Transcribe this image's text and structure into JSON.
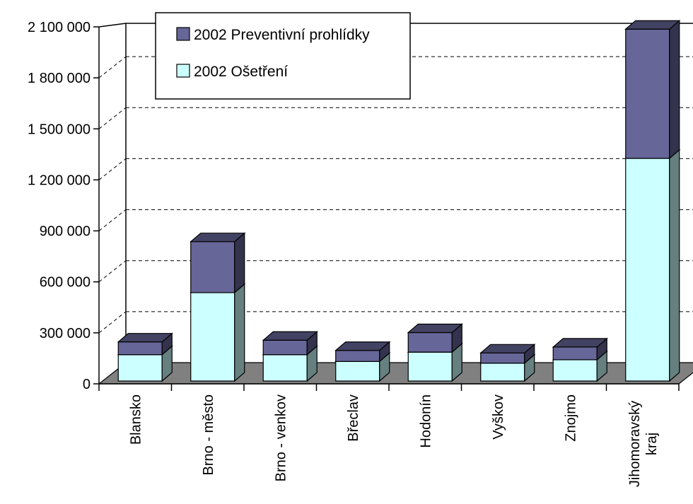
{
  "chart_data": {
    "type": "bar",
    "stacked": true,
    "three_d": true,
    "title": "",
    "xlabel": "",
    "ylabel": "",
    "categories": [
      [
        "Blansko"
      ],
      [
        "Brno - město"
      ],
      [
        "Brno - venkov"
      ],
      [
        "Břeclav"
      ],
      [
        "Hodonín"
      ],
      [
        "Vyškov"
      ],
      [
        "Znojmo"
      ],
      [
        "Jihomoravský",
        "kraj"
      ]
    ],
    "series": [
      {
        "name": "2002 Ošetření",
        "color": "#ccffff",
        "values": [
          155000,
          520000,
          155000,
          115000,
          170000,
          105000,
          125000,
          1310000
        ]
      },
      {
        "name": "2002 Preventivní prohlídky",
        "color": "#666699",
        "values": [
          75000,
          300000,
          85000,
          65000,
          115000,
          60000,
          75000,
          760000
        ]
      }
    ],
    "ylim": [
      0,
      2100000
    ],
    "yticks": [
      {
        "value": 0,
        "label": "0"
      },
      {
        "value": 300000,
        "label": "300 000"
      },
      {
        "value": 600000,
        "label": "600 000"
      },
      {
        "value": 900000,
        "label": "900 000"
      },
      {
        "value": 1200000,
        "label": "1 200 000"
      },
      {
        "value": 1500000,
        "label": "1 500 000"
      },
      {
        "value": 1800000,
        "label": "1 800 000"
      },
      {
        "value": 2100000,
        "label": "2 100 000"
      }
    ],
    "grid": true,
    "legend_position": "top-left",
    "legend_order": [
      1,
      0
    ],
    "floor_color": "#808080"
  }
}
